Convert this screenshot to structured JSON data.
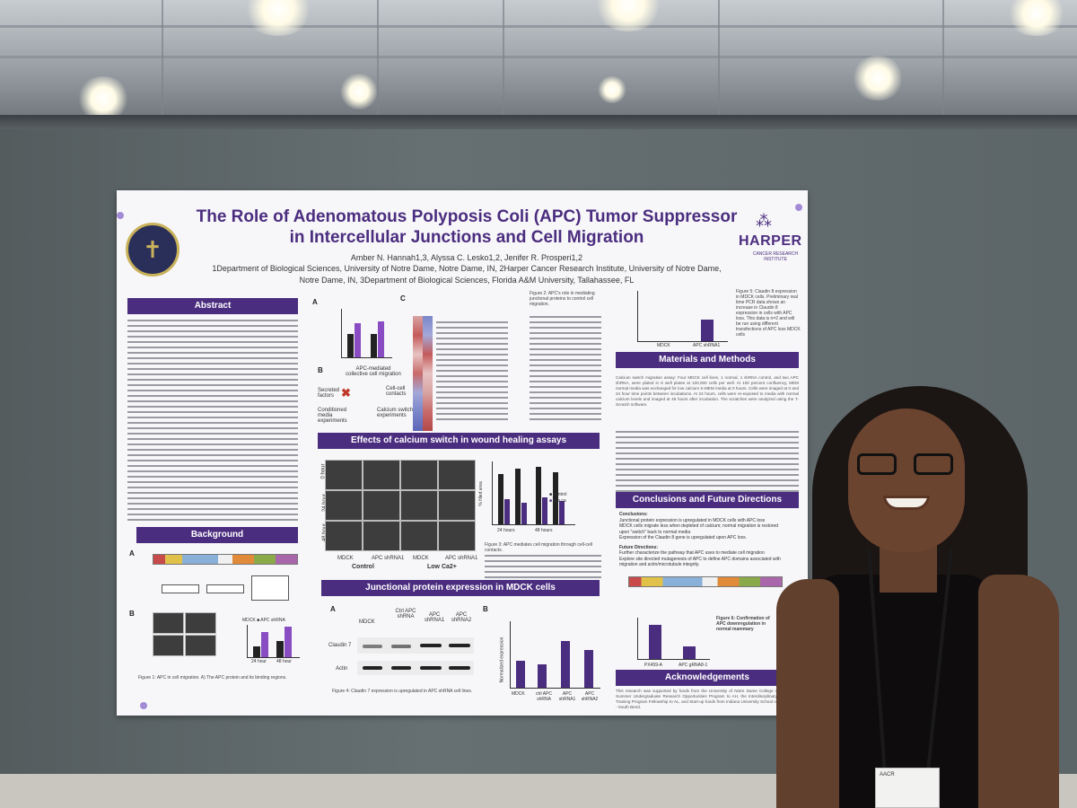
{
  "poster": {
    "title_line1": "The Role of Adenomatous Polyposis Coli (APC) Tumor Suppressor",
    "title_line2": "in Intercellular Junctions and Cell Migration",
    "authors": "Amber N. Hannah1,3, Alyssa C. Lesko1,2, Jenifer R. Prosperi1,2",
    "affiliation_line1": "1Department of Biological Sciences, University of Notre Dame, Notre Dame, IN, 2Harper Cancer Research Institute, University of Notre Dame,",
    "affiliation_line2": "Notre Dame, IN, 3Department of Biological Sciences, Florida A&M University, Tallahassee, FL",
    "logo_name": "HARPER",
    "logo_sub": "CANCER RESEARCH INSTITUTE",
    "sections": {
      "abstract": "Abstract",
      "background": "Background",
      "wound": "Effects of calcium switch in wound healing assays",
      "junctional": "Junctional protein expression in MDCK cells",
      "materials": "Materials and Methods",
      "conclusions": "Conclusions and Future Directions",
      "acknowledgements": "Acknowledgements"
    },
    "panel_letters": {
      "a": "A",
      "b": "B",
      "c": "C"
    },
    "diagram": {
      "apc_mediated": "APC-mediated",
      "collective": "collective cell migration",
      "secreted": "Secreted",
      "factors": "factors",
      "cell_cell": "Cell-cell",
      "contacts": "contacts",
      "conditioned_media": "Conditioned media experiments",
      "calcium_switch": "Calcium switch experiments"
    },
    "wound_labels": {
      "hours_0": "0 hour",
      "hours_24": "24 hour",
      "hours_48": "48 hour",
      "mdck": "MDCK",
      "apc_shrna1": "APC shRNA1",
      "control": "Control",
      "low_ca": "Low Ca2+",
      "legend_control": "control",
      "legend_lowca": "low ca",
      "x_24": "24 hours",
      "x_48": "48 hours",
      "ylabel": "% filled area"
    },
    "western": {
      "lanes": [
        "MDCK",
        "Ctrl APC shRNA",
        "APC shRNA1",
        "APC shRNA2"
      ],
      "claudin": "Claudin 7",
      "actin": "Actin",
      "bar_labels": [
        "MDCK",
        "ctrl APC shRNA",
        "APC shRNA1",
        "APC shRNA2"
      ],
      "ylabel": "Normalized expression"
    },
    "materials_text": "Calcium switch migration assay: Four MDCK cell lines, 1 normal, 1 shRNA control, and two APC shRNA, were plated in 6 well plates at 100,000 cells per well. At 100 percent confluency, MEM normal media was exchanged for low calcium S-MEM media at 0 hours. Cells were imaged at 0 and 24 hour time points between incubations. At 24 hours, cells were re-exposed to media with normal calcium levels and imaged at 48 hours after incubation. The scratches were analyzed using the T-Scratch software.",
    "conclusions_title": "Conclusions:",
    "conclusions": [
      "Junctional protein expression is upregulated in MDCK cells with APC loss",
      "MDCK cells migrate less when depleted of calcium; normal migration is restored upon \"switch\" back to normal media",
      "Expression of the Claudin 8 gene is upregulated upon APC loss."
    ],
    "future_title": "Future Directions:",
    "future": [
      "Further characterize the pathway that APC uses to mediate cell migration",
      "Explore site directed mutagenesis of APC to define APC domains associated with migration and actin/microtubule integrity."
    ],
    "fig5_caption": "Figure 5: Claudin 8 expression in MDCK cells. Preliminary real time PCR data shows an increase in Claudin 8 expression in cells with APC loss. This data is n=2 and will be run using different transfections of APC loss MDCK cells",
    "fig5_labels": [
      "MDCK",
      "APC shRNA1"
    ],
    "fig1_caption": "Figure 1: APC in cell migration. A) The APC protein and its binding regions.",
    "fig3_caption": "Figure 3: APC mediates cell migration through cell-cell contacts.",
    "fig4_caption": "Figure 4: Claudin 7 expression is upregulated in APC shRNA cell lines.",
    "fig2_caption": "Figure 2: APC's role in mediating junctional proteins to control cell migration.",
    "fig6_caption": "Figure 6: Confirmation of APC downregulation in normal mammary",
    "fig6_labels": [
      "PX459-A",
      "APC gRNA8-1"
    ],
    "fig1b_labels": [
      "24 hour",
      "48 hour"
    ],
    "fig1b_legend": [
      "MDCK",
      "APC shRNA"
    ],
    "ack_text": "This research was supported by funds from the University of Notre Dame College of Science Summer Undergraduate Research Opportunities Program to AH, the Interdisciplinary Interface Training Program Fellowship to AL, and Start-up funds from Indiana University School of Medicine - South Bend."
  },
  "badge": {
    "text": "AACR"
  }
}
